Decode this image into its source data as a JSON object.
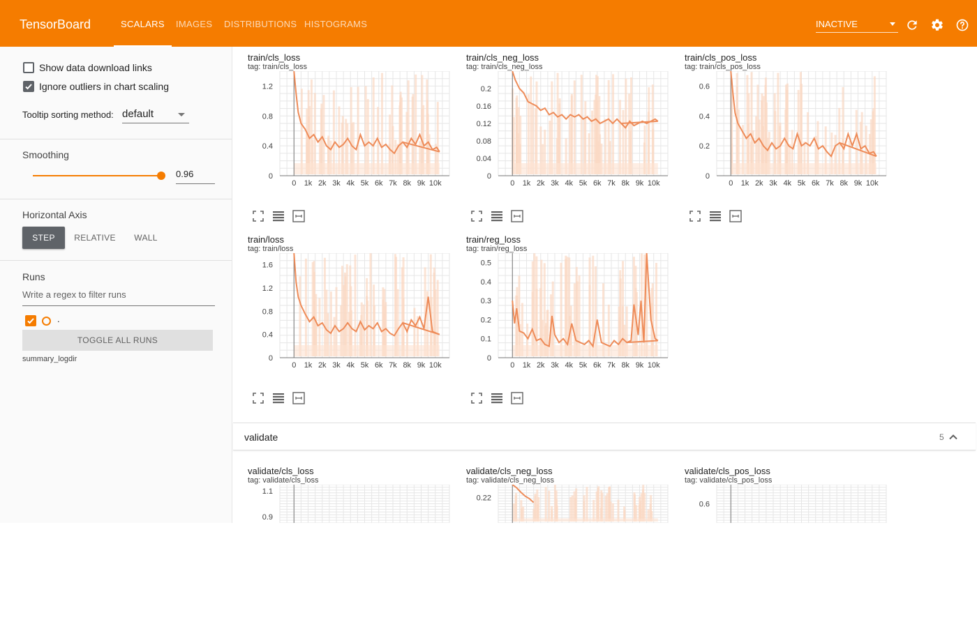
{
  "app": {
    "brand": "TensorBoard",
    "tabs": [
      {
        "label": "SCALARS",
        "active": true
      },
      {
        "label": "IMAGES",
        "active": false
      },
      {
        "label": "DISTRIBUTIONS",
        "active": false
      },
      {
        "label": "HISTOGRAMS",
        "active": false
      }
    ],
    "status_select": "INACTIVE",
    "icons": [
      "refresh-icon",
      "gear-icon",
      "help-icon"
    ],
    "accent_color": "#f57c00"
  },
  "sidebar": {
    "show_download_links": {
      "label": "Show data download links",
      "checked": false
    },
    "ignore_outliers": {
      "label": "Ignore outliers in chart scaling",
      "checked": true
    },
    "tooltip_sorting": {
      "label": "Tooltip sorting method:",
      "value": "default"
    },
    "smoothing": {
      "title": "Smoothing",
      "value": "0.96",
      "fraction": 0.96
    },
    "horizontal_axis": {
      "title": "Horizontal Axis",
      "options": [
        "STEP",
        "RELATIVE",
        "WALL"
      ],
      "selected": "STEP"
    },
    "runs": {
      "title": "Runs",
      "filter_placeholder": "Write a regex to filter runs",
      "run_label": ".",
      "toggle_all_label": "TOGGLE ALL RUNS",
      "logdir": "summary_logdir"
    }
  },
  "main": {
    "validate_section": {
      "label": "validate",
      "count": "5"
    },
    "cards": [
      {
        "title": "train/cls_loss",
        "tag": "tag: train/cls_loss"
      },
      {
        "title": "train/cls_neg_loss",
        "tag": "tag: train/cls_neg_loss"
      },
      {
        "title": "train/cls_pos_loss",
        "tag": "tag: train/cls_pos_loss"
      },
      {
        "title": "train/loss",
        "tag": "tag: train/loss"
      },
      {
        "title": "train/reg_loss",
        "tag": "tag: train/reg_loss"
      },
      {
        "title": "validate/cls_loss",
        "tag": "tag: validate/cls_loss"
      },
      {
        "title": "validate/cls_neg_loss",
        "tag": "tag: validate/cls_neg_loss"
      },
      {
        "title": "validate/cls_pos_loss",
        "tag": "tag: validate/cls_pos_loss"
      }
    ]
  },
  "chart_data": [
    {
      "type": "line",
      "ylim": [
        0,
        1.4
      ],
      "xlim": [
        -1000,
        11000
      ],
      "yticks": [
        {
          "v": 0,
          "label": "0"
        },
        {
          "v": 0.4,
          "label": "0.4"
        },
        {
          "v": 0.8,
          "label": "0.8"
        },
        {
          "v": 1.2,
          "label": "1.2"
        }
      ],
      "xticks": [
        "0",
        "1k",
        "2k",
        "3k",
        "4k",
        "5k",
        "6k",
        "7k",
        "8k",
        "9k",
        "10k"
      ],
      "series": [
        {
          "x": [
            0,
            150,
            300,
            500,
            800,
            1100,
            1400,
            1700,
            2000,
            2300,
            2600,
            2900,
            3200,
            3500,
            3800,
            4100,
            4400,
            4700,
            5000,
            5300,
            5600,
            5900,
            6200,
            6500,
            6800,
            7100,
            7400,
            7700,
            8000,
            8300,
            8600,
            8900,
            9200,
            9500,
            9800,
            10100,
            10300
          ],
          "y": [
            1.4,
            1.1,
            0.85,
            0.7,
            0.62,
            0.5,
            0.55,
            0.45,
            0.52,
            0.4,
            0.35,
            0.45,
            0.38,
            0.42,
            0.5,
            0.4,
            0.35,
            0.55,
            0.4,
            0.45,
            0.4,
            0.5,
            0.38,
            0.42,
            0.35,
            0.3,
            0.4,
            0.45,
            0.38,
            0.5,
            0.42,
            0.55,
            0.4,
            0.45,
            0.35,
            0.38,
            0.32
          ]
        }
      ]
    },
    {
      "type": "line",
      "ylim": [
        0,
        0.24
      ],
      "xlim": [
        -1000,
        11000
      ],
      "yticks": [
        {
          "v": 0,
          "label": "0"
        },
        {
          "v": 0.04,
          "label": "0.04"
        },
        {
          "v": 0.08,
          "label": "0.08"
        },
        {
          "v": 0.12,
          "label": "0.12"
        },
        {
          "v": 0.16,
          "label": "0.16"
        },
        {
          "v": 0.2,
          "label": "0.2"
        }
      ],
      "xticks": [
        "0",
        "1k",
        "2k",
        "3k",
        "4k",
        "5k",
        "6k",
        "7k",
        "8k",
        "9k",
        "10k"
      ],
      "series": [
        {
          "x": [
            0,
            200,
            500,
            800,
            1100,
            1400,
            1700,
            2000,
            2300,
            2600,
            2900,
            3200,
            3500,
            3800,
            4100,
            4400,
            4700,
            5000,
            5300,
            5600,
            5900,
            6200,
            6500,
            6800,
            7100,
            7400,
            7700,
            8000,
            8300,
            8600,
            8900,
            9200,
            9500,
            9800,
            10100,
            10300
          ],
          "y": [
            0.24,
            0.22,
            0.2,
            0.19,
            0.17,
            0.165,
            0.16,
            0.15,
            0.155,
            0.14,
            0.145,
            0.135,
            0.14,
            0.13,
            0.14,
            0.135,
            0.14,
            0.13,
            0.135,
            0.125,
            0.13,
            0.12,
            0.125,
            0.13,
            0.12,
            0.13,
            0.12,
            0.11,
            0.125,
            0.115,
            0.12,
            0.125,
            0.12,
            0.125,
            0.13,
            0.125
          ]
        }
      ]
    },
    {
      "type": "line",
      "ylim": [
        0,
        0.7
      ],
      "xlim": [
        -1000,
        11000
      ],
      "yticks": [
        {
          "v": 0,
          "label": "0"
        },
        {
          "v": 0.2,
          "label": "0.2"
        },
        {
          "v": 0.4,
          "label": "0.4"
        },
        {
          "v": 0.6,
          "label": "0.6"
        }
      ],
      "xticks": [
        "0",
        "1k",
        "2k",
        "3k",
        "4k",
        "5k",
        "6k",
        "7k",
        "8k",
        "9k",
        "10k"
      ],
      "series": [
        {
          "x": [
            0,
            150,
            300,
            500,
            800,
            1100,
            1400,
            1700,
            2000,
            2300,
            2600,
            2900,
            3200,
            3500,
            3800,
            4100,
            4400,
            4700,
            5000,
            5300,
            5600,
            5900,
            6200,
            6500,
            6800,
            7100,
            7400,
            7700,
            8000,
            8300,
            8600,
            8900,
            9200,
            9500,
            9800,
            10100,
            10300
          ],
          "y": [
            0.7,
            0.55,
            0.42,
            0.35,
            0.3,
            0.25,
            0.28,
            0.22,
            0.25,
            0.2,
            0.17,
            0.22,
            0.18,
            0.2,
            0.25,
            0.2,
            0.18,
            0.28,
            0.2,
            0.22,
            0.2,
            0.25,
            0.18,
            0.2,
            0.16,
            0.13,
            0.2,
            0.22,
            0.18,
            0.28,
            0.2,
            0.28,
            0.18,
            0.2,
            0.15,
            0.16,
            0.13
          ]
        }
      ]
    },
    {
      "type": "line",
      "ylim": [
        0,
        1.8
      ],
      "xlim": [
        -1000,
        11000
      ],
      "yticks": [
        {
          "v": 0,
          "label": "0"
        },
        {
          "v": 0.4,
          "label": "0.4"
        },
        {
          "v": 0.8,
          "label": "0.8"
        },
        {
          "v": 1.2,
          "label": "1.2"
        },
        {
          "v": 1.6,
          "label": "1.6"
        }
      ],
      "xticks": [
        "0",
        "1k",
        "2k",
        "3k",
        "4k",
        "5k",
        "6k",
        "7k",
        "8k",
        "9k",
        "10k"
      ],
      "series": [
        {
          "x": [
            0,
            150,
            300,
            500,
            800,
            1100,
            1400,
            1700,
            2000,
            2300,
            2600,
            2900,
            3200,
            3500,
            3800,
            4100,
            4400,
            4700,
            5000,
            5300,
            5600,
            5900,
            6200,
            6500,
            6800,
            7100,
            7400,
            7700,
            8000,
            8300,
            8600,
            8900,
            9200,
            9500,
            9800,
            10100,
            10300
          ],
          "y": [
            1.8,
            1.3,
            1.05,
            0.9,
            0.75,
            0.62,
            0.7,
            0.55,
            0.6,
            0.48,
            0.42,
            0.55,
            0.45,
            0.5,
            0.6,
            0.5,
            0.45,
            0.62,
            0.48,
            0.55,
            0.5,
            0.6,
            0.45,
            0.5,
            0.42,
            0.38,
            0.5,
            0.6,
            0.45,
            0.65,
            0.55,
            0.7,
            0.5,
            1.05,
            0.45,
            0.42,
            0.4
          ]
        }
      ]
    },
    {
      "type": "line",
      "ylim": [
        0,
        0.55
      ],
      "xlim": [
        -1000,
        11000
      ],
      "yticks": [
        {
          "v": 0,
          "label": "0"
        },
        {
          "v": 0.1,
          "label": "0.1"
        },
        {
          "v": 0.2,
          "label": "0.2"
        },
        {
          "v": 0.3,
          "label": "0.3"
        },
        {
          "v": 0.4,
          "label": "0.4"
        },
        {
          "v": 0.5,
          "label": "0.5"
        }
      ],
      "xticks": [
        "0",
        "1k",
        "2k",
        "3k",
        "4k",
        "5k",
        "6k",
        "7k",
        "8k",
        "9k",
        "10k"
      ],
      "series": [
        {
          "x": [
            0,
            150,
            300,
            500,
            800,
            1100,
            1400,
            1700,
            2000,
            2300,
            2600,
            2800,
            3000,
            3300,
            3600,
            3900,
            4200,
            4500,
            4800,
            5100,
            5400,
            5700,
            6000,
            6300,
            6600,
            6900,
            7200,
            7500,
            7800,
            8100,
            8400,
            8600,
            8900,
            9100,
            9300,
            9500,
            9800,
            10100,
            10300
          ],
          "y": [
            0.3,
            0.18,
            0.26,
            0.14,
            0.13,
            0.1,
            0.15,
            0.09,
            0.1,
            0.07,
            0.06,
            0.22,
            0.12,
            0.08,
            0.1,
            0.07,
            0.18,
            0.09,
            0.08,
            0.07,
            0.09,
            0.06,
            0.2,
            0.08,
            0.07,
            0.06,
            0.09,
            0.07,
            0.1,
            0.08,
            0.09,
            0.28,
            0.12,
            0.3,
            0.08,
            0.55,
            0.2,
            0.1,
            0.09
          ]
        }
      ]
    },
    {
      "type": "line",
      "ylim": [
        0.85,
        1.15
      ],
      "xlim": [
        -1000,
        11000
      ],
      "yticks": [
        {
          "v": 0.9,
          "label": "0.9"
        },
        {
          "v": 1.1,
          "label": "1.1"
        }
      ],
      "xticks": [],
      "series": []
    },
    {
      "type": "line",
      "ylim": [
        0.18,
        0.24
      ],
      "xlim": [
        -1000,
        11000
      ],
      "yticks": [
        {
          "v": 0.22,
          "label": "0.22"
        }
      ],
      "xticks": [],
      "series": [
        {
          "x": [
            0,
            300,
            600,
            900,
            1200,
            1500
          ],
          "y": [
            0.24,
            0.235,
            0.228,
            0.222,
            0.218,
            0.212
          ]
        }
      ]
    },
    {
      "type": "line",
      "ylim": [
        0.5,
        0.7
      ],
      "xlim": [
        -1000,
        11000
      ],
      "yticks": [
        {
          "v": 0.6,
          "label": "0.6"
        }
      ],
      "xticks": [],
      "series": []
    }
  ]
}
